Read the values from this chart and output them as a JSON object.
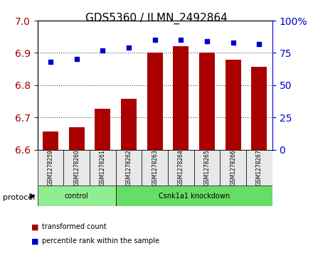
{
  "title": "GDS5360 / ILMN_2492864",
  "samples": [
    "GSM1278259",
    "GSM1278260",
    "GSM1278261",
    "GSM1278262",
    "GSM1278263",
    "GSM1278264",
    "GSM1278265",
    "GSM1278266",
    "GSM1278267"
  ],
  "transformed_count": [
    6.657,
    6.67,
    6.727,
    6.757,
    6.902,
    6.92,
    6.901,
    6.879,
    6.857
  ],
  "percentile_rank": [
    68,
    70,
    77,
    79,
    85,
    85,
    84,
    83,
    82
  ],
  "ylim_left": [
    6.6,
    7.0
  ],
  "ylim_right": [
    0,
    100
  ],
  "yticks_left": [
    6.6,
    6.7,
    6.8,
    6.9,
    7.0
  ],
  "yticks_right": [
    0,
    25,
    50,
    75,
    100
  ],
  "bar_color": "#aa0000",
  "dot_color": "#0000cc",
  "protocol_groups": [
    {
      "label": "control",
      "indices": [
        0,
        1,
        2
      ],
      "color": "#90ee90"
    },
    {
      "label": "Csnk1a1 knockdown",
      "indices": [
        3,
        4,
        5,
        6,
        7,
        8
      ],
      "color": "#66dd66"
    }
  ],
  "legend_bar_label": "transformed count",
  "legend_dot_label": "percentile rank within the sample",
  "protocol_label": "protocol",
  "bg_color": "#e8e8e8",
  "plot_bg": "#ffffff"
}
